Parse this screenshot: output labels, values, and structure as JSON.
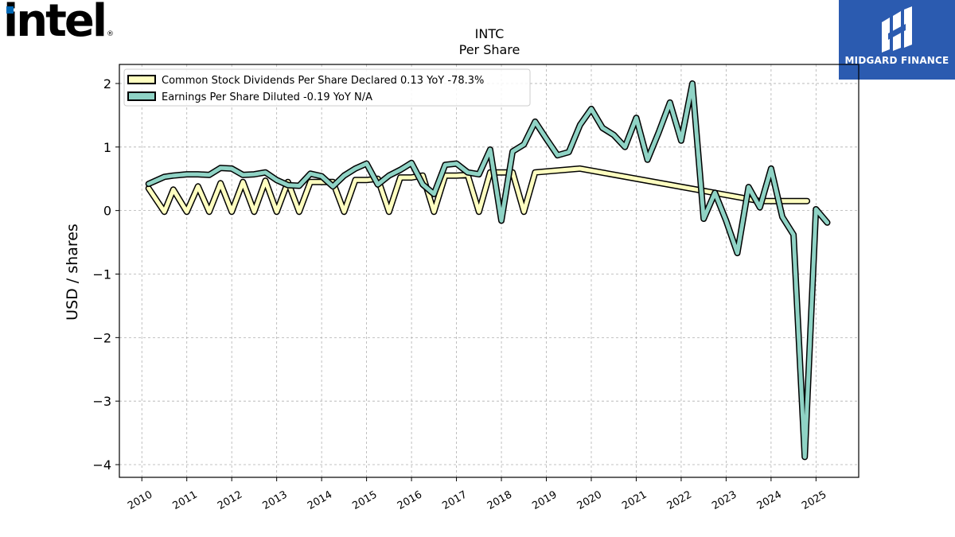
{
  "logo": {
    "text": "intel",
    "mark": "®"
  },
  "brand": {
    "name": "MIDGARD FINANCE",
    "icon": "midgard-logo-icon"
  },
  "chart_data": {
    "type": "line",
    "title": "INTC",
    "subtitle": "Per  Share",
    "ylabel": "USD / shares",
    "xlabel": "",
    "ylim": [
      -4.2,
      2.3
    ],
    "xlim": [
      2009.5,
      2025.95
    ],
    "yticks": [
      2,
      1,
      0,
      -1,
      -2,
      -3,
      -4
    ],
    "ytick_labels": [
      "2",
      "1",
      "0",
      "−1",
      "−2",
      "−3",
      "−4"
    ],
    "xticks": [
      "2010",
      "2011",
      "2012",
      "2013",
      "2014",
      "2015",
      "2016",
      "2017",
      "2018",
      "2019",
      "2020",
      "2021",
      "2022",
      "2023",
      "2024",
      "2025"
    ],
    "grid": true,
    "legend_position": "upper-left",
    "series": [
      {
        "name": "Common Stock Dividends Per Share Declared  0.13 YoY -78.3%",
        "color": "#ffffc0",
        "x": [
          2010.15,
          2010.5,
          2010.7,
          2011.0,
          2011.25,
          2011.5,
          2011.75,
          2012.0,
          2012.25,
          2012.5,
          2012.75,
          2013.0,
          2013.25,
          2013.5,
          2013.75,
          2014.0,
          2014.25,
          2014.5,
          2014.75,
          2015.0,
          2015.25,
          2015.5,
          2015.75,
          2016.0,
          2016.25,
          2016.5,
          2016.75,
          2017.0,
          2017.25,
          2017.5,
          2017.75,
          2018.0,
          2018.25,
          2018.5,
          2018.75,
          2019.75,
          2023.75,
          2024.1,
          2024.8
        ],
        "y": [
          0.35,
          -0.02,
          0.33,
          -0.02,
          0.38,
          -0.02,
          0.43,
          -0.02,
          0.45,
          -0.02,
          0.47,
          -0.02,
          0.45,
          -0.02,
          0.45,
          0.45,
          0.45,
          -0.02,
          0.48,
          0.48,
          0.5,
          -0.02,
          0.52,
          0.52,
          0.55,
          -0.02,
          0.55,
          0.55,
          0.56,
          -0.02,
          0.6,
          0.6,
          0.6,
          -0.02,
          0.6,
          0.66,
          0.15,
          0.15,
          0.15
        ]
      },
      {
        "name": "Earnings Per Share Diluted  -0.19 YoY N/A",
        "color": "#8fd3c5",
        "x": [
          2010.15,
          2010.5,
          2010.7,
          2011.0,
          2011.25,
          2011.5,
          2011.75,
          2012.0,
          2012.25,
          2012.5,
          2012.75,
          2013.0,
          2013.25,
          2013.5,
          2013.75,
          2014.0,
          2014.25,
          2014.5,
          2014.75,
          2015.0,
          2015.25,
          2015.5,
          2015.75,
          2016.0,
          2016.25,
          2016.5,
          2016.75,
          2017.0,
          2017.25,
          2017.5,
          2017.75,
          2018.0,
          2018.25,
          2018.5,
          2018.75,
          2019.0,
          2019.25,
          2019.5,
          2019.75,
          2020.0,
          2020.25,
          2020.5,
          2020.75,
          2021.0,
          2021.25,
          2021.5,
          2021.75,
          2022.0,
          2022.25,
          2022.5,
          2022.75,
          2023.0,
          2023.25,
          2023.5,
          2023.75,
          2024.0,
          2024.25,
          2024.5,
          2024.75,
          2025.0,
          2025.25
        ],
        "y": [
          0.42,
          0.53,
          0.55,
          0.57,
          0.57,
          0.56,
          0.67,
          0.66,
          0.56,
          0.57,
          0.6,
          0.48,
          0.4,
          0.39,
          0.58,
          0.54,
          0.38,
          0.55,
          0.66,
          0.74,
          0.41,
          0.55,
          0.64,
          0.75,
          0.41,
          0.26,
          0.72,
          0.74,
          0.6,
          0.57,
          0.96,
          -0.16,
          0.93,
          1.04,
          1.4,
          1.13,
          0.87,
          0.92,
          1.35,
          1.6,
          1.3,
          1.19,
          1.0,
          1.46,
          0.8,
          1.23,
          1.7,
          1.1,
          2.0,
          -0.13,
          0.28,
          -0.16,
          -0.67,
          0.37,
          0.05,
          0.66,
          -0.1,
          -0.38,
          -3.88,
          0.02,
          -0.19
        ]
      }
    ]
  }
}
